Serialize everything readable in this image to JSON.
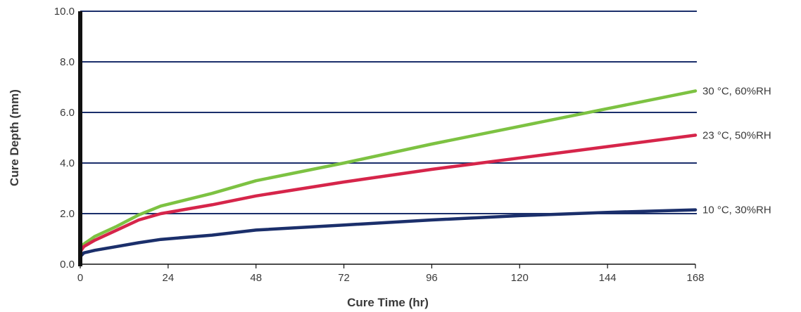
{
  "chart_data": {
    "type": "line",
    "xlabel": "Cure Time (hr)",
    "ylabel": "Cure Depth (mm)",
    "xlim": [
      0,
      168
    ],
    "ylim": [
      0,
      10
    ],
    "x_ticks": [
      "0",
      "24",
      "48",
      "72",
      "96",
      "120",
      "144",
      "168"
    ],
    "y_ticks": [
      "0.0",
      "2.0",
      "4.0",
      "6.0",
      "8.0",
      "10.0"
    ],
    "grid": "horizontal",
    "legend": "labels at right end of each line",
    "series": [
      {
        "name": "30 °C, 60%RH",
        "color": "#7dc242",
        "x": [
          0,
          1,
          4,
          10,
          16,
          22,
          36,
          48,
          72,
          96,
          120,
          144,
          168
        ],
        "y": [
          0.6,
          0.8,
          1.1,
          1.5,
          1.95,
          2.3,
          2.8,
          3.3,
          4.0,
          4.75,
          5.45,
          6.15,
          6.85
        ]
      },
      {
        "name": "23 °C, 50%RH",
        "color": "#d6254a",
        "x": [
          0,
          1,
          4,
          10,
          16,
          22,
          36,
          48,
          72,
          96,
          120,
          144,
          168
        ],
        "y": [
          0.5,
          0.7,
          0.95,
          1.35,
          1.75,
          2.0,
          2.35,
          2.7,
          3.25,
          3.75,
          4.2,
          4.65,
          5.1
        ]
      },
      {
        "name": "10 °C, 30%RH",
        "color": "#1b2f6b",
        "x": [
          0,
          1,
          4,
          10,
          16,
          22,
          36,
          48,
          72,
          96,
          120,
          144,
          168
        ],
        "y": [
          0.3,
          0.45,
          0.55,
          0.7,
          0.85,
          0.98,
          1.15,
          1.35,
          1.55,
          1.75,
          1.92,
          2.05,
          2.15
        ]
      }
    ]
  }
}
